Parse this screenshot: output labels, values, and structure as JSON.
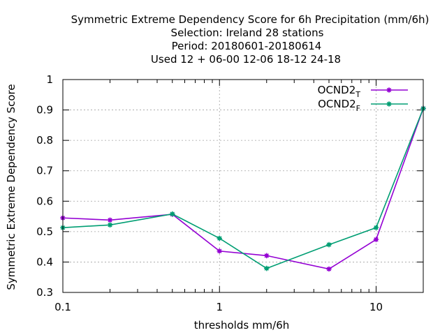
{
  "chart_data": {
    "type": "line",
    "title_lines": [
      "Symmetric Extreme Dependency Score  for 6h Precipitation (mm/6h)",
      "Selection: Ireland     28 stations",
      "Period: 20180601-20180614",
      "Used  12 + 06-00 12-06 18-12 24-18"
    ],
    "xlabel": "thresholds mm/6h",
    "ylabel": "Symmetric Extreme Dependency Score",
    "x_scale": "log",
    "xlim": [
      0.1,
      20
    ],
    "ylim": [
      0.3,
      1.0
    ],
    "x_ticks": [
      0.1,
      1,
      10
    ],
    "x_tick_labels": [
      "0.1",
      "1",
      "10"
    ],
    "y_ticks": [
      0.3,
      0.4,
      0.5,
      0.6,
      0.7,
      0.8,
      0.9,
      1.0
    ],
    "y_tick_labels": [
      "0.3",
      "0.4",
      "0.5",
      "0.6",
      "0.7",
      "0.8",
      "0.9",
      "1"
    ],
    "grid": true,
    "legend_position": "top-right",
    "x": [
      0.1,
      0.2,
      0.5,
      1,
      2,
      5,
      10,
      20
    ],
    "series": [
      {
        "name_base": "OCND2",
        "name_sub": "T",
        "color": "#9400d3",
        "values": [
          0.545,
          0.538,
          0.557,
          0.436,
          0.421,
          0.377,
          0.474,
          0.905
        ]
      },
      {
        "name_base": "OCND2",
        "name_sub": "F",
        "color": "#009e73",
        "values": [
          0.513,
          0.522,
          0.558,
          0.478,
          0.379,
          0.457,
          0.513,
          0.905
        ]
      }
    ]
  }
}
